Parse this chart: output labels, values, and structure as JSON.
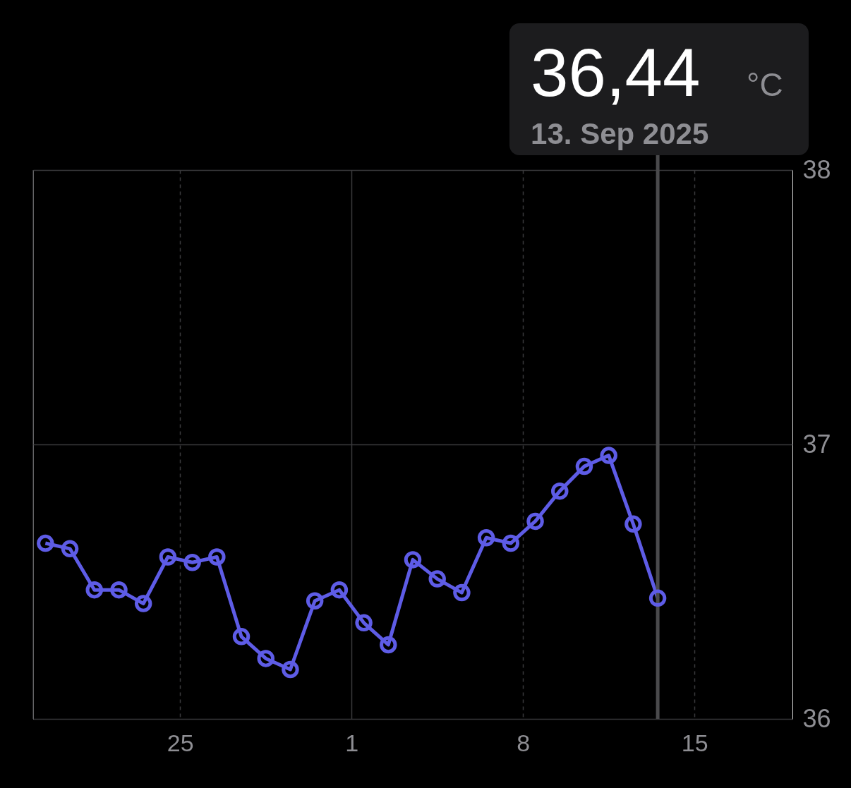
{
  "chart_data": {
    "type": "line",
    "x": [
      "2025-08-19T12:00",
      "2025-08-20T12:00",
      "2025-08-21T12:00",
      "2025-08-22T12:00",
      "2025-08-23T12:00",
      "2025-08-24T12:00",
      "2025-08-25T12:00",
      "2025-08-26T12:00",
      "2025-08-27T12:00",
      "2025-08-28T12:00",
      "2025-08-29T12:00",
      "2025-08-30T12:00",
      "2025-08-31T12:00",
      "2025-09-01T12:00",
      "2025-09-02T12:00",
      "2025-09-03T12:00",
      "2025-09-04T12:00",
      "2025-09-05T12:00",
      "2025-09-06T12:00",
      "2025-09-07T12:00",
      "2025-09-08T12:00",
      "2025-09-09T12:00",
      "2025-09-10T12:00",
      "2025-09-11T12:00",
      "2025-09-12T12:00",
      "2025-09-13T12:00"
    ],
    "series": [
      {
        "color": "#5e5ce6",
        "values": [
          36.64,
          36.62,
          36.47,
          36.47,
          36.42,
          36.59,
          36.57,
          36.59,
          36.3,
          36.22,
          36.18,
          36.43,
          36.47,
          36.35,
          36.27,
          36.58,
          36.51,
          36.46,
          36.66,
          36.64,
          36.72,
          36.83,
          36.92,
          36.96,
          36.71,
          36.44
        ]
      }
    ],
    "xlim": [
      "2025-08-19T00:00",
      "2025-09-19T00:00"
    ],
    "xticks": [
      {
        "value": "2025-08-25T00:00",
        "label": "25"
      },
      {
        "value": "2025-09-01T00:00",
        "label": "1"
      },
      {
        "value": "2025-09-08T00:00",
        "label": "8"
      },
      {
        "value": "2025-09-15T00:00",
        "label": "15"
      }
    ],
    "ylim": [
      36,
      38
    ],
    "yticks": [
      36,
      37,
      38
    ],
    "grid": true,
    "marker": "circle",
    "line_style": "solid",
    "legend": false,
    "ref_lines": [
      {
        "axis": "x",
        "value": "2025-09-13T12:00",
        "color": "#4a4a4c"
      }
    ],
    "annotations": [
      "36,44",
      "°C",
      "13. Sep 2025"
    ]
  }
}
